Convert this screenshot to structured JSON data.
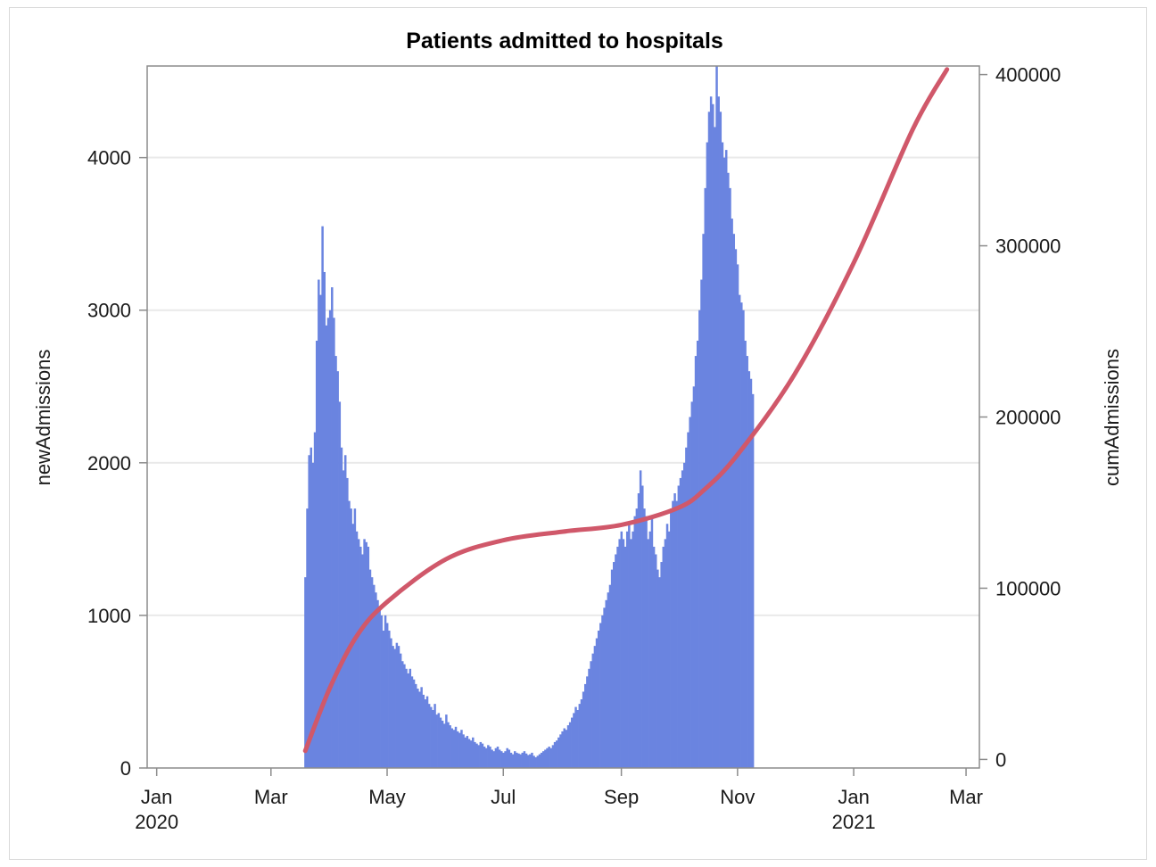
{
  "chart_data": {
    "type": "bar",
    "title": "Patients admitted to hospitals",
    "xlabel": "",
    "ylabel": "newAdmissions",
    "y2label": "cumAdmissions",
    "x_ticks": [
      "Jan",
      "Mar",
      "May",
      "Jul",
      "Sep",
      "Nov",
      "Jan",
      "Mar"
    ],
    "x_tick_dates": [
      "2020-01-01",
      "2020-03-01",
      "2020-05-01",
      "2020-07-01",
      "2020-09-01",
      "2020-11-01",
      "2021-01-01",
      "2021-03-01"
    ],
    "x_year_labels": [
      {
        "label": "2020",
        "date": "2020-01-01"
      },
      {
        "label": "2021",
        "date": "2021-01-01"
      }
    ],
    "xlim": [
      "2019-12-27",
      "2021-03-08"
    ],
    "ylim": [
      0,
      4600
    ],
    "y_ticks": [
      0,
      1000,
      2000,
      3000,
      4000
    ],
    "y2lim": [
      -5000,
      405000
    ],
    "y2_ticks": [
      0,
      100000,
      200000,
      300000,
      400000
    ],
    "grid": true,
    "colors": {
      "bars": "#6a84e0",
      "line": "#d0586a",
      "grid": "#e9e9e9",
      "axis": "#8c8c8c"
    },
    "series": [
      {
        "type": "bar",
        "axis": "left",
        "start_date": "2020-03-19",
        "values": [
          1250,
          1700,
          2050,
          2100,
          2000,
          2200,
          2800,
          3200,
          3100,
          3550,
          3250,
          2900,
          2950,
          3000,
          3150,
          2950,
          2700,
          2600,
          2400,
          2100,
          1950,
          2050,
          1900,
          1750,
          1700,
          1600,
          1700,
          1550,
          1500,
          1450,
          1400,
          1500,
          1480,
          1450,
          1300,
          1250,
          1200,
          1150,
          1100,
          1050,
          1000,
          900,
          1000,
          950,
          900,
          850,
          800,
          780,
          820,
          800,
          750,
          700,
          680,
          650,
          620,
          650,
          600,
          580,
          550,
          520,
          500,
          530,
          480,
          450,
          470,
          420,
          400,
          380,
          420,
          350,
          360,
          330,
          310,
          290,
          350,
          300,
          280,
          260,
          250,
          270,
          240,
          230,
          250,
          220,
          200,
          210,
          190,
          180,
          200,
          170,
          160,
          150,
          170,
          160,
          140,
          130,
          150,
          140,
          120,
          110,
          130,
          140,
          120,
          110,
          100,
          110,
          130,
          120,
          100,
          90,
          110,
          100,
          95,
          90,
          100,
          110,
          95,
          85,
          90,
          100,
          80,
          70,
          80,
          90,
          100,
          110,
          120,
          130,
          140,
          130,
          150,
          170,
          180,
          200,
          220,
          240,
          260,
          250,
          280,
          300,
          330,
          360,
          400,
          380,
          420,
          450,
          500,
          550,
          600,
          650,
          700,
          750,
          800,
          850,
          900,
          950,
          1000,
          1050,
          1100,
          1150,
          1200,
          1300,
          1350,
          1400,
          1450,
          1500,
          1550,
          1500,
          1450,
          1550,
          1600,
          1500,
          1550,
          1650,
          1700,
          1800,
          1950,
          1850,
          1700,
          1650,
          1500,
          1550,
          1650,
          1450,
          1400,
          1300,
          1250,
          1350,
          1450,
          1500,
          1600,
          1550,
          1700,
          1750,
          1800,
          1750,
          1850,
          1900,
          1950,
          2000,
          2100,
          2200,
          2300,
          2400,
          2500,
          2700,
          2800,
          3000,
          3200,
          3500,
          3800,
          4100,
          4300,
          4400,
          4350,
          4200,
          4600,
          4400,
          4300,
          4100,
          4000,
          4050,
          3900,
          3800,
          3600,
          3500,
          3400,
          3300,
          3100,
          3050,
          3000,
          2800,
          2700,
          2600,
          2550,
          2450
        ]
      },
      {
        "type": "line",
        "axis": "right",
        "name": "cumAdmissions",
        "x": [
          "2020-03-19",
          "2020-04-01",
          "2020-04-15",
          "2020-05-01",
          "2020-06-01",
          "2020-07-01",
          "2020-08-01",
          "2020-09-01",
          "2020-10-01",
          "2020-10-15",
          "2020-11-01",
          "2020-12-01",
          "2021-01-01",
          "2021-02-01",
          "2021-02-19"
        ],
        "values": [
          5000,
          42000,
          72000,
          92000,
          117000,
          128000,
          133000,
          137000,
          147000,
          158000,
          178000,
          225000,
          290000,
          368000,
          403000
        ]
      }
    ]
  }
}
